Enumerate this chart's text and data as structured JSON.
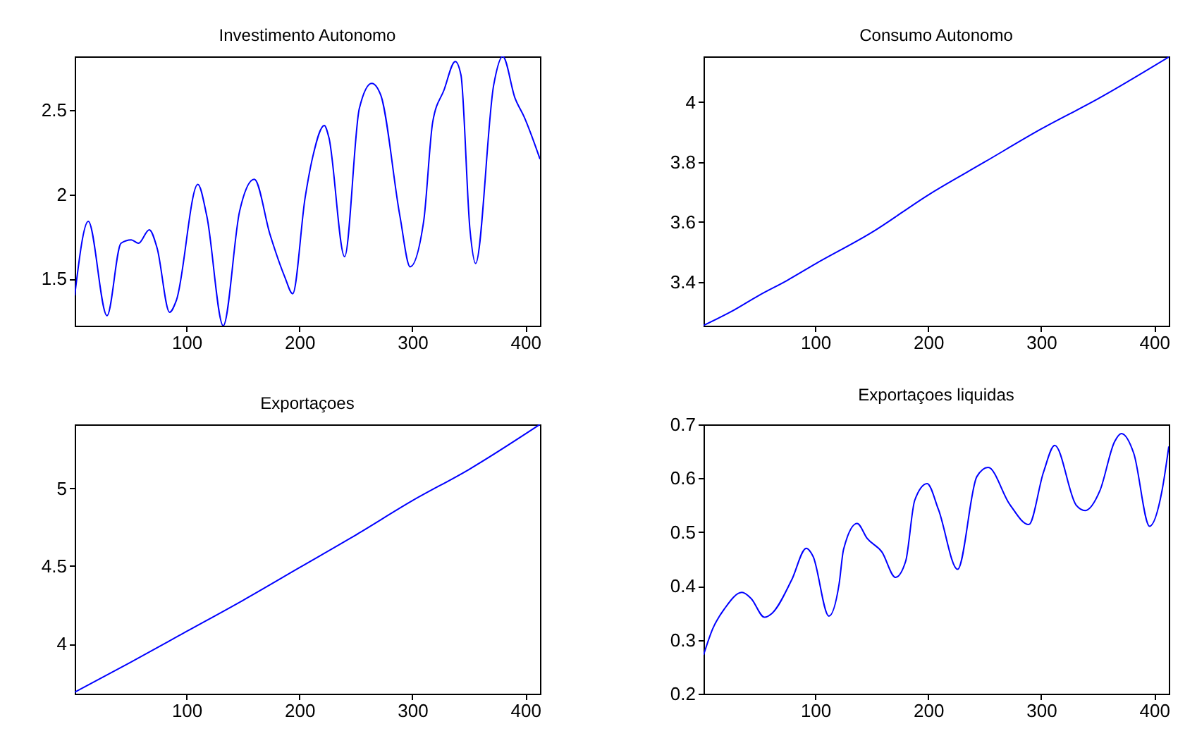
{
  "chart_data": [
    {
      "type": "line",
      "title": "Investimento Autonomo",
      "marker": "none",
      "line_style": "solid",
      "x": [
        1,
        13,
        29.6,
        42,
        51,
        57.5,
        67,
        74,
        85,
        91,
        110,
        118,
        132.5,
        147,
        160,
        174,
        187,
        194,
        205,
        212,
        222,
        226,
        240,
        253,
        264,
        272,
        289,
        298,
        310,
        318,
        328,
        338,
        343,
        351,
        356,
        372,
        380,
        391,
        399,
        413
      ],
      "series": [
        {
          "color": "#0000ff",
          "values": [
            1.4,
            1.84,
            1.28,
            1.71,
            1.73,
            1.71,
            1.79,
            1.68,
            1.3,
            1.37,
            2.06,
            1.87,
            1.22,
            1.9,
            2.09,
            1.76,
            1.51,
            1.41,
            1.98,
            2.23,
            2.41,
            2.34,
            1.63,
            2.51,
            2.66,
            2.59,
            1.87,
            1.57,
            1.84,
            2.43,
            2.62,
            2.79,
            2.71,
            1.79,
            1.59,
            2.65,
            2.82,
            2.57,
            2.46,
            2.21
          ]
        }
      ],
      "xlim": [
        1,
        413
      ],
      "xticks": [
        100,
        200,
        300,
        400
      ],
      "ylim": [
        1.22,
        2.82
      ],
      "yticks": [
        1.5,
        2,
        2.5
      ]
    },
    {
      "type": "line",
      "title": "Consumo Autonomo",
      "marker": "none",
      "line_style": "solid",
      "x": [
        1,
        25,
        50,
        75,
        100,
        150,
        200,
        250,
        300,
        350,
        413
      ],
      "series": [
        {
          "color": "#0000ff",
          "values": [
            3.255,
            3.3,
            3.355,
            3.405,
            3.46,
            3.565,
            3.69,
            3.8,
            3.91,
            4.01,
            4.15
          ]
        }
      ],
      "xlim": [
        1,
        413
      ],
      "xticks": [
        100,
        200,
        300,
        400
      ],
      "ylim": [
        3.254,
        4.152
      ],
      "yticks": [
        3.4,
        3.6,
        3.8,
        4
      ]
    },
    {
      "type": "line",
      "title": "Exportaçoes",
      "marker": "none",
      "line_style": "solid",
      "x": [
        1,
        50,
        100,
        150,
        200,
        250,
        300,
        350,
        413
      ],
      "series": [
        {
          "color": "#0000ff",
          "values": [
            3.69,
            3.88,
            4.08,
            4.28,
            4.49,
            4.7,
            4.92,
            5.12,
            5.41
          ]
        }
      ],
      "xlim": [
        1,
        413
      ],
      "xticks": [
        100,
        200,
        300,
        400
      ],
      "ylim": [
        3.68,
        5.41
      ],
      "yticks": [
        4,
        4.5,
        5
      ]
    },
    {
      "type": "line",
      "title": "Exportaçoes liquidas",
      "marker": "none",
      "line_style": "solid",
      "x": [
        1,
        9,
        20,
        35,
        43,
        55,
        62,
        79,
        92,
        98,
        112,
        121,
        125,
        137,
        146,
        159,
        171,
        180,
        188,
        199,
        209,
        226,
        243,
        253,
        272,
        289,
        302,
        312,
        331,
        339,
        352,
        365,
        371,
        382,
        396,
        407,
        413
      ],
      "series": [
        {
          "color": "#0000ff",
          "values": [
            0.272,
            0.32,
            0.359,
            0.388,
            0.377,
            0.342,
            0.35,
            0.411,
            0.47,
            0.455,
            0.344,
            0.403,
            0.468,
            0.516,
            0.488,
            0.463,
            0.416,
            0.446,
            0.559,
            0.59,
            0.542,
            0.431,
            0.603,
            0.62,
            0.552,
            0.514,
            0.611,
            0.661,
            0.55,
            0.54,
            0.577,
            0.668,
            0.683,
            0.646,
            0.511,
            0.577,
            0.659
          ]
        }
      ],
      "xlim": [
        1,
        413
      ],
      "xticks": [
        100,
        200,
        300,
        400
      ],
      "ylim": [
        0.2,
        0.7
      ],
      "yticks": [
        0.2,
        0.3,
        0.4,
        0.5,
        0.6,
        0.7
      ]
    }
  ]
}
